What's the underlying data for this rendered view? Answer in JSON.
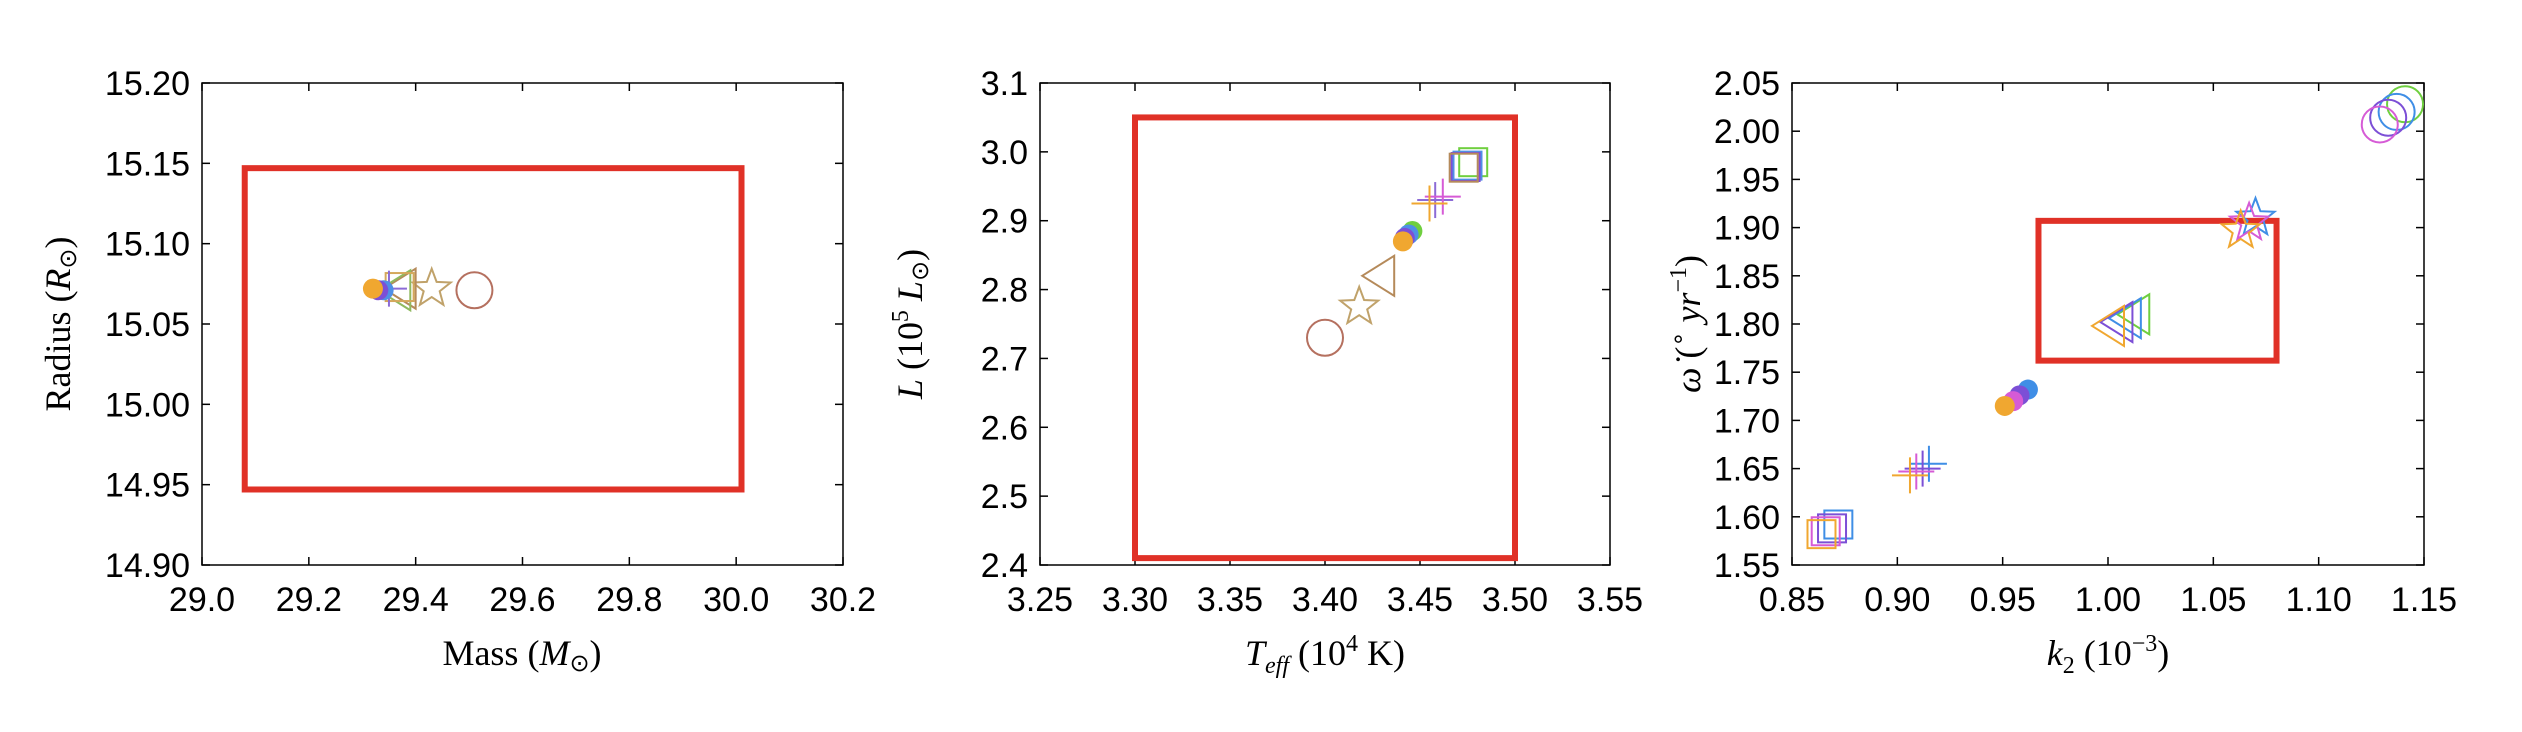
{
  "chart_data": [
    {
      "type": "scatter",
      "xlabel": "Mass (M⊙)",
      "ylabel": "Radius (R⊙)",
      "xlim": [
        29.0,
        30.2
      ],
      "ylim": [
        14.9,
        15.2
      ],
      "xticks": [
        "29.0",
        "29.2",
        "29.4",
        "29.6",
        "29.8",
        "30.0",
        "30.2"
      ],
      "yticks": [
        "14.90",
        "14.95",
        "15.00",
        "15.05",
        "15.10",
        "15.15",
        "15.20"
      ],
      "box": {
        "x": [
          29.08,
          30.01
        ],
        "y": [
          14.947,
          15.147
        ],
        "color": "#e03127"
      },
      "points": [
        {
          "marker": "circle",
          "x": 29.51,
          "y": 15.071,
          "color": "#b5705f"
        },
        {
          "marker": "star",
          "x": 29.43,
          "y": 15.072,
          "color": "#c0a26a"
        },
        {
          "marker": "triangle",
          "x": 29.37,
          "y": 15.072,
          "color": "#b58a5a"
        },
        {
          "marker": "triangle",
          "x": 29.36,
          "y": 15.071,
          "color": "#8fb95f"
        },
        {
          "marker": "square",
          "x": 29.37,
          "y": 15.073,
          "color": "#d4a85c"
        },
        {
          "marker": "plus",
          "x": 29.35,
          "y": 15.072,
          "color": "#8c6bd6"
        },
        {
          "marker": "filled-circle",
          "x": 29.34,
          "y": 15.071,
          "color": "#4f8fe6"
        },
        {
          "marker": "filled-circle",
          "x": 29.33,
          "y": 15.071,
          "color": "#7c4fd6"
        },
        {
          "marker": "filled-circle",
          "x": 29.32,
          "y": 15.072,
          "color": "#f0a730"
        }
      ]
    },
    {
      "type": "scatter",
      "xlabel": "Teff (10⁴ K)",
      "ylabel": "L (10⁵ L⊙)",
      "xlim": [
        3.25,
        3.55
      ],
      "ylim": [
        2.4,
        3.1
      ],
      "xticks": [
        "3.25",
        "3.30",
        "3.35",
        "3.40",
        "3.45",
        "3.50",
        "3.55"
      ],
      "yticks": [
        "2.4",
        "2.5",
        "2.6",
        "2.7",
        "2.8",
        "2.9",
        "3.0",
        "3.1"
      ],
      "box": {
        "x": [
          3.3,
          3.5
        ],
        "y": [
          2.41,
          3.05
        ],
        "color": "#e03127"
      },
      "points": [
        {
          "marker": "circle",
          "x": 3.4,
          "y": 2.73,
          "color": "#b5705f"
        },
        {
          "marker": "star",
          "x": 3.418,
          "y": 2.775,
          "color": "#c0a26a"
        },
        {
          "marker": "triangle",
          "x": 3.428,
          "y": 2.82,
          "color": "#b58a5a"
        },
        {
          "marker": "filled-circle",
          "x": 3.446,
          "y": 2.885,
          "color": "#6fcf3f"
        },
        {
          "marker": "filled-circle",
          "x": 3.444,
          "y": 2.88,
          "color": "#4f8fe6"
        },
        {
          "marker": "filled-circle",
          "x": 3.442,
          "y": 2.875,
          "color": "#7c4fd6"
        },
        {
          "marker": "filled-circle",
          "x": 3.441,
          "y": 2.87,
          "color": "#f0a730"
        },
        {
          "marker": "plus",
          "x": 3.458,
          "y": 2.93,
          "color": "#8c6bd6"
        },
        {
          "marker": "plus",
          "x": 3.462,
          "y": 2.935,
          "color": "#d65bd6"
        },
        {
          "marker": "plus",
          "x": 3.455,
          "y": 2.925,
          "color": "#f0a730"
        },
        {
          "marker": "square",
          "x": 3.478,
          "y": 2.985,
          "color": "#6fcf3f"
        },
        {
          "marker": "square",
          "x": 3.475,
          "y": 2.98,
          "color": "#4f8fe6"
        },
        {
          "marker": "square",
          "x": 3.474,
          "y": 2.978,
          "color": "#7c4fd6"
        },
        {
          "marker": "square",
          "x": 3.473,
          "y": 2.977,
          "color": "#b58a5a"
        }
      ]
    },
    {
      "type": "scatter",
      "xlabel": "k₂ (10⁻³)",
      "ylabel": "ω̇ (° yr⁻¹)",
      "xlim": [
        0.85,
        1.15
      ],
      "ylim": [
        1.55,
        2.05
      ],
      "xticks": [
        "0.85",
        "0.90",
        "0.95",
        "1.00",
        "1.05",
        "1.10",
        "1.15"
      ],
      "yticks": [
        "1.55",
        "1.60",
        "1.65",
        "1.70",
        "1.75",
        "1.80",
        "1.85",
        "1.90",
        "1.95",
        "2.00",
        "2.05"
      ],
      "box": {
        "x": [
          0.967,
          1.08
        ],
        "y": [
          1.762,
          1.907
        ],
        "color": "#e03127"
      },
      "points": [
        {
          "marker": "square",
          "x": 0.872,
          "y": 1.592,
          "color": "#3f8ee6"
        },
        {
          "marker": "square",
          "x": 0.869,
          "y": 1.588,
          "color": "#7c4fd6"
        },
        {
          "marker": "square",
          "x": 0.866,
          "y": 1.585,
          "color": "#d65bd6"
        },
        {
          "marker": "square",
          "x": 0.864,
          "y": 1.582,
          "color": "#f0a730"
        },
        {
          "marker": "plus",
          "x": 0.915,
          "y": 1.655,
          "color": "#3f8ee6"
        },
        {
          "marker": "plus",
          "x": 0.912,
          "y": 1.65,
          "color": "#7c4fd6"
        },
        {
          "marker": "plus",
          "x": 0.909,
          "y": 1.647,
          "color": "#d65bd6"
        },
        {
          "marker": "plus",
          "x": 0.906,
          "y": 1.643,
          "color": "#f0a730"
        },
        {
          "marker": "filled-circle",
          "x": 0.962,
          "y": 1.732,
          "color": "#3f8ee6"
        },
        {
          "marker": "filled-circle",
          "x": 0.958,
          "y": 1.726,
          "color": "#7c4fd6"
        },
        {
          "marker": "filled-circle",
          "x": 0.955,
          "y": 1.72,
          "color": "#d65bd6"
        },
        {
          "marker": "filled-circle",
          "x": 0.951,
          "y": 1.715,
          "color": "#f0a730"
        },
        {
          "marker": "triangle",
          "x": 1.012,
          "y": 1.81,
          "color": "#6fcf3f"
        },
        {
          "marker": "triangle",
          "x": 1.008,
          "y": 1.806,
          "color": "#3f8ee6"
        },
        {
          "marker": "triangle",
          "x": 1.004,
          "y": 1.802,
          "color": "#7c4fd6"
        },
        {
          "marker": "triangle",
          "x": 1.0,
          "y": 1.798,
          "color": "#f0a730"
        },
        {
          "marker": "star",
          "x": 1.07,
          "y": 1.91,
          "color": "#3f8ee6"
        },
        {
          "marker": "star",
          "x": 1.067,
          "y": 1.905,
          "color": "#d65bd6"
        },
        {
          "marker": "star",
          "x": 1.063,
          "y": 1.897,
          "color": "#f0a730"
        },
        {
          "marker": "circle",
          "x": 1.141,
          "y": 2.028,
          "color": "#6fcf3f"
        },
        {
          "marker": "circle",
          "x": 1.137,
          "y": 2.02,
          "color": "#3f8ee6"
        },
        {
          "marker": "circle",
          "x": 1.133,
          "y": 2.014,
          "color": "#7c4fd6"
        },
        {
          "marker": "circle",
          "x": 1.129,
          "y": 2.007,
          "color": "#d65bd6"
        }
      ]
    }
  ]
}
